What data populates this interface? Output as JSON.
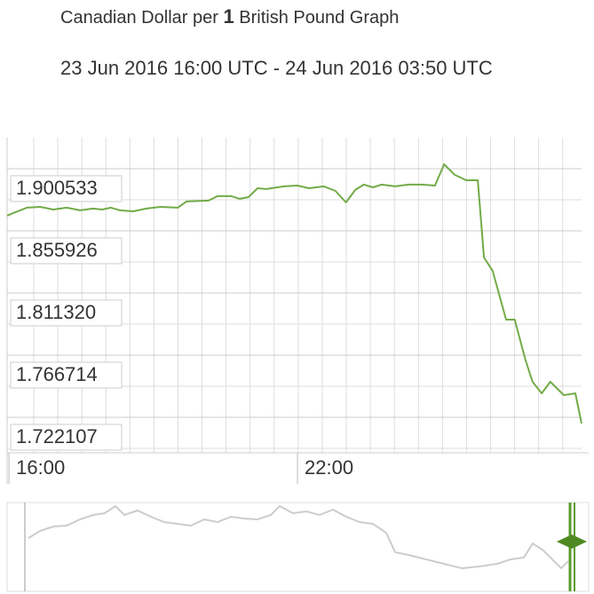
{
  "chart_data": {
    "type": "line",
    "title_prefix": "Canadian Dollar per",
    "title_amount": "1",
    "title_suffix": "British Pound Graph",
    "subtitle": "23 Jun 2016 16:00 UTC - 24 Jun 2016 03:50 UTC",
    "x": [
      15.96,
      16.09,
      16.37,
      16.65,
      16.92,
      17.2,
      17.48,
      17.75,
      17.94,
      18.12,
      18.31,
      18.58,
      18.86,
      19.14,
      19.51,
      19.69,
      20.15,
      20.34,
      20.62,
      20.8,
      20.98,
      21.17,
      21.35,
      21.72,
      22.0,
      22.24,
      22.55,
      22.79,
      23.01,
      23.2,
      23.38,
      23.57,
      23.75,
      24.03,
      24.31,
      24.58,
      24.86,
      25.05,
      25.27,
      25.51,
      25.75,
      25.88,
      26.06,
      26.34,
      26.52,
      26.74,
      26.89,
      27.08,
      27.26,
      27.54,
      27.78,
      27.91
    ],
    "series": [
      {
        "color": "#72ab48",
        "values": [
          1.8668,
          1.8687,
          1.8725,
          1.8731,
          1.8712,
          1.8725,
          1.8706,
          1.8719,
          1.8712,
          1.8725,
          1.8706,
          1.8699,
          1.8719,
          1.8731,
          1.8725,
          1.877,
          1.8776,
          1.8808,
          1.8808,
          1.8789,
          1.8801,
          1.8865,
          1.8859,
          1.8878,
          1.8884,
          1.8865,
          1.8878,
          1.8846,
          1.8763,
          1.8852,
          1.8891,
          1.8871,
          1.8891,
          1.8878,
          1.8891,
          1.8891,
          1.8884,
          1.9037,
          1.8961,
          1.8922,
          1.8922,
          1.8368,
          1.8273,
          1.7922,
          1.7922,
          1.7635,
          1.7476,
          1.7393,
          1.7476,
          1.738,
          1.7393,
          1.7177
        ]
      }
    ],
    "xlim": [
      15.96,
      27.91
    ],
    "xticks": [
      {
        "value": 16,
        "label": "16:00"
      },
      {
        "value": 22,
        "label": "22:00"
      }
    ],
    "ylim": [
      1.6966,
      1.9228
    ],
    "yticks": [
      1.722107,
      1.766714,
      {
        "value": 1.81132,
        "label": "1.811320"
      },
      1.855926,
      1.900533
    ],
    "grid": true
  }
}
